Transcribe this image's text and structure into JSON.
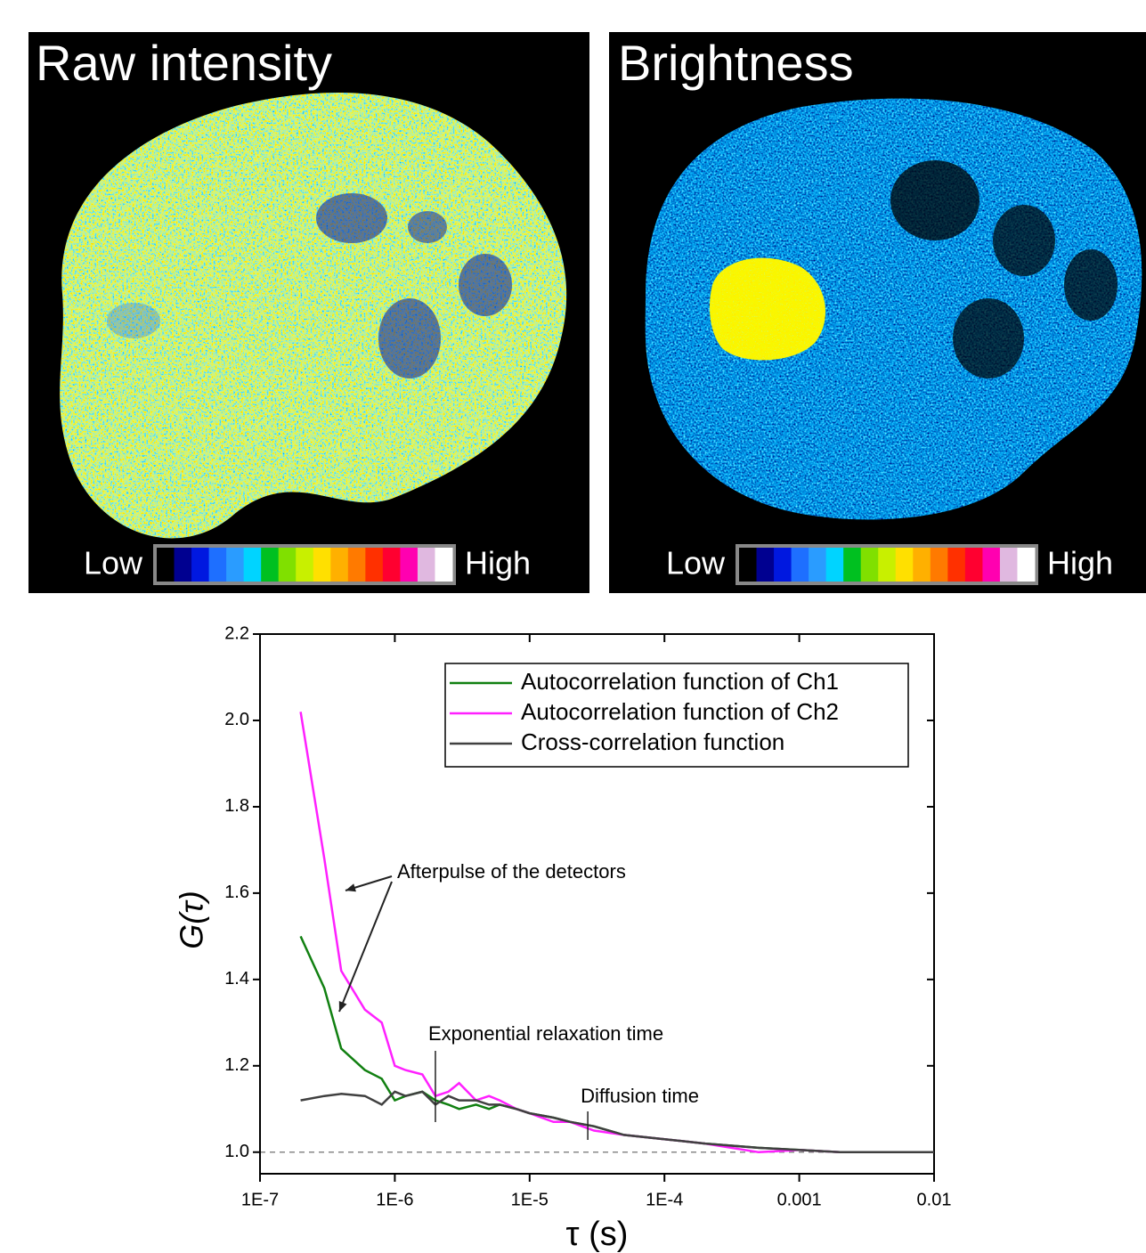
{
  "images": [
    {
      "title": "Raw intensity",
      "low": "Low",
      "high": "High"
    },
    {
      "title": "Brightness",
      "low": "Low",
      "high": "High"
    }
  ],
  "colorbar_colors": [
    "#000000",
    "#000090",
    "#0018e0",
    "#1e6fff",
    "#2a9cff",
    "#00d4ff",
    "#00c020",
    "#80e000",
    "#c8f000",
    "#ffe000",
    "#ffb000",
    "#ff7a00",
    "#ff3000",
    "#ff0030",
    "#ff00b0",
    "#e0b8e0",
    "#ffffff"
  ],
  "chart_data": {
    "type": "line",
    "x": [
      2e-07,
      3e-07,
      4e-07,
      6e-07,
      8e-07,
      1e-06,
      1.2e-06,
      1.6e-06,
      2e-06,
      2.5e-06,
      3e-06,
      4e-06,
      5e-06,
      6e-06,
      8e-06,
      1e-05,
      1.5e-05,
      2e-05,
      3e-05,
      5e-05,
      0.0001,
      0.0002,
      0.0005,
      0.001,
      0.002,
      0.005,
      0.01
    ],
    "series": [
      {
        "name": "Autocorrelation function of Ch1",
        "color": "#118011",
        "values": [
          1.5,
          1.38,
          1.24,
          1.19,
          1.17,
          1.12,
          1.13,
          1.14,
          1.12,
          1.11,
          1.1,
          1.11,
          1.1,
          1.11,
          1.1,
          1.09,
          1.08,
          1.07,
          1.06,
          1.04,
          1.03,
          1.02,
          1.01,
          1.005,
          1.0,
          1.0,
          1.0
        ]
      },
      {
        "name": "Autocorrelation function of Ch2",
        "color": "#ff20ff",
        "values": [
          2.02,
          1.68,
          1.42,
          1.33,
          1.3,
          1.2,
          1.19,
          1.18,
          1.13,
          1.14,
          1.16,
          1.12,
          1.13,
          1.12,
          1.1,
          1.09,
          1.07,
          1.07,
          1.05,
          1.04,
          1.03,
          1.02,
          1.0,
          1.005,
          1.0,
          1.0,
          1.0
        ]
      },
      {
        "name": "Cross-correlation function",
        "color": "#404040",
        "values": [
          1.12,
          1.13,
          1.135,
          1.13,
          1.11,
          1.14,
          1.13,
          1.14,
          1.11,
          1.13,
          1.12,
          1.12,
          1.11,
          1.11,
          1.1,
          1.09,
          1.08,
          1.07,
          1.06,
          1.04,
          1.03,
          1.02,
          1.01,
          1.005,
          1.0,
          1.0,
          1.0
        ]
      }
    ],
    "log_x": true,
    "xlim": [
      1e-07,
      0.01
    ],
    "xticks": [
      {
        "value": 1e-07,
        "label": "1E-7"
      },
      {
        "value": 1e-06,
        "label": "1E-6"
      },
      {
        "value": 1e-05,
        "label": "1E-5"
      },
      {
        "value": 0.0001,
        "label": "1E-4"
      },
      0.001,
      0.01
    ],
    "ylim": [
      0.95,
      2.2
    ],
    "yticks": [
      {
        "value": 1.0,
        "label": "1.0"
      },
      1.2,
      1.4,
      1.6,
      1.8,
      {
        "value": 2.0,
        "label": "2.0"
      },
      2.2
    ],
    "xlabel": "τ (s)",
    "ylabel": "G(τ)",
    "reference_line": 1.0,
    "legend": "top-right",
    "annotations": [
      {
        "text": "Afterpulse of the detectors"
      },
      {
        "text": "Exponential relaxation time",
        "x": 2e-06
      },
      {
        "text": "Diffusion time",
        "x": 2.7e-05
      }
    ]
  }
}
